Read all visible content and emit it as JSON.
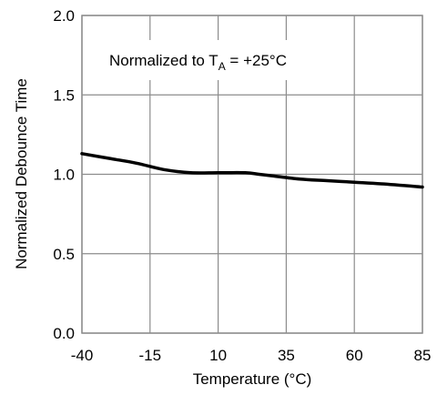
{
  "chart_data": {
    "type": "line",
    "xlabel": "Temperature (°C)",
    "ylabel": "Normalized Debounce Time",
    "xlim": [
      -40,
      85
    ],
    "ylim": [
      0.0,
      2.0
    ],
    "x_ticks": [
      "-40",
      "-15",
      "10",
      "35",
      "60",
      "85"
    ],
    "y_ticks": [
      "0.0",
      "0.5",
      "1.0",
      "1.5",
      "2.0"
    ],
    "grid": true,
    "annotation": {
      "prefix": "Normalized to T",
      "subscript": "A",
      "suffix": " = +25°C"
    },
    "series": [
      {
        "x": [
          -40,
          -30,
          -20,
          -10,
          0,
          10,
          20,
          25,
          30,
          40,
          50,
          60,
          70,
          85
        ],
        "y": [
          1.13,
          1.1,
          1.07,
          1.03,
          1.01,
          1.01,
          1.01,
          1.0,
          0.99,
          0.97,
          0.96,
          0.95,
          0.94,
          0.92
        ]
      }
    ],
    "line_color": "#000000",
    "grid_color": "#8c8c8c"
  }
}
